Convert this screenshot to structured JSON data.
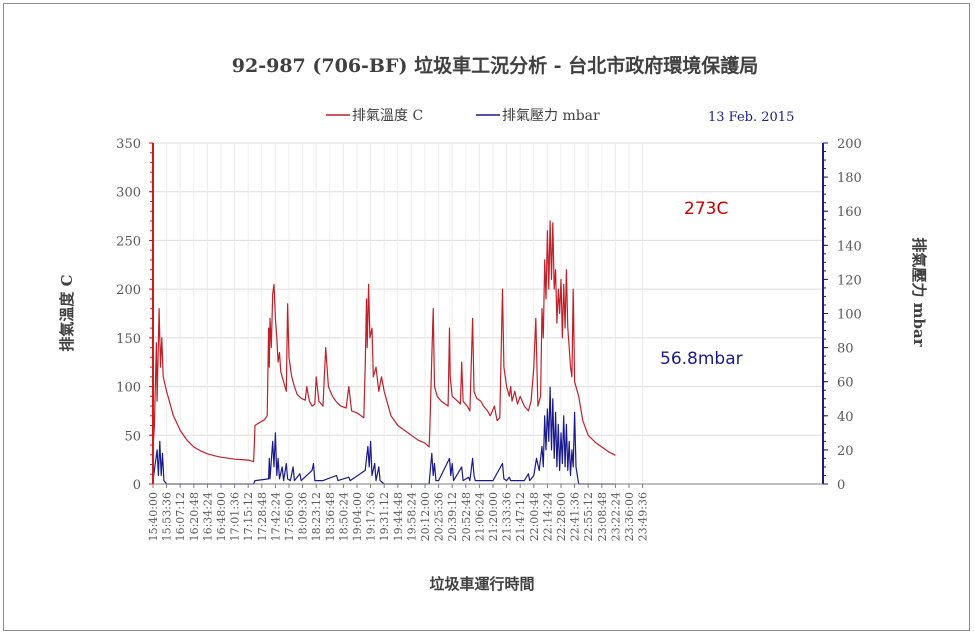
{
  "chart_data": {
    "type": "line",
    "title": "92-987 (706-BF) 垃圾車工況分析 - 台北市政府環境保護局",
    "date": "13 Feb. 2015",
    "xlabel": "垃圾車運行時間",
    "ylabel_left": "排氣溫度 C",
    "ylabel_right": "排氣壓力 mbar",
    "ylim_left": [
      0,
      350
    ],
    "ylim_right": [
      0,
      200
    ],
    "yticks_left": [
      0,
      50,
      100,
      150,
      200,
      250,
      300,
      350
    ],
    "yticks_right": [
      0,
      20,
      40,
      60,
      80,
      100,
      120,
      140,
      160,
      180,
      200
    ],
    "grid": true,
    "legend_position": "top-center",
    "x_ticks": [
      "15:40:00",
      "15:53:36",
      "16:07:12",
      "16:20:48",
      "16:34:24",
      "16:48:00",
      "17:01:36",
      "17:15:12",
      "17:28:48",
      "17:42:24",
      "17:56:00",
      "18:09:36",
      "18:23:12",
      "18:36:48",
      "18:50:24",
      "19:04:00",
      "19:17:36",
      "19:31:12",
      "19:44:48",
      "19:58:24",
      "20:12:00",
      "20:25:36",
      "20:39:12",
      "20:52:48",
      "21:06:24",
      "21:20:00",
      "21:33:36",
      "21:47:12",
      "22:00:48",
      "22:14:24",
      "22:28:00",
      "22:41:36",
      "22:55:12",
      "23:08:48",
      "23:22:24",
      "23:36:00",
      "23:49:36"
    ],
    "annotations": [
      {
        "text": "273C",
        "color": "#cc0000"
      },
      {
        "text": "56.8mbar",
        "color": "#1a1a8c"
      }
    ],
    "series": [
      {
        "name": "排氣溫度 C",
        "axis": "left",
        "color": "#c0202a",
        "points": [
          [
            0,
            35
          ],
          [
            0.1,
            60
          ],
          [
            0.25,
            145
          ],
          [
            0.3,
            85
          ],
          [
            0.45,
            180
          ],
          [
            0.55,
            120
          ],
          [
            0.65,
            150
          ],
          [
            0.75,
            110
          ],
          [
            1,
            95
          ],
          [
            1.5,
            70
          ],
          [
            2,
            55
          ],
          [
            2.5,
            45
          ],
          [
            3,
            38
          ],
          [
            3.5,
            34
          ],
          [
            4,
            31
          ],
          [
            4.5,
            29
          ],
          [
            5,
            27.5
          ],
          [
            5.5,
            26.5
          ],
          [
            6,
            25.5
          ],
          [
            6.5,
            25
          ],
          [
            7,
            24.5
          ],
          [
            7.4,
            23
          ],
          [
            7.45,
            40
          ],
          [
            7.5,
            60
          ],
          [
            7.7,
            62
          ],
          [
            8.2,
            66
          ],
          [
            8.4,
            70
          ],
          [
            8.5,
            160
          ],
          [
            8.55,
            120
          ],
          [
            8.6,
            170
          ],
          [
            8.7,
            140
          ],
          [
            8.8,
            195
          ],
          [
            8.9,
            205
          ],
          [
            9,
            170
          ],
          [
            9.1,
            150
          ],
          [
            9.2,
            125
          ],
          [
            9.3,
            135
          ],
          [
            9.4,
            115
          ],
          [
            9.6,
            105
          ],
          [
            9.8,
            95
          ],
          [
            9.9,
            185
          ],
          [
            10,
            130
          ],
          [
            10.2,
            110
          ],
          [
            10.4,
            100
          ],
          [
            10.6,
            92
          ],
          [
            10.9,
            88
          ],
          [
            11.2,
            86
          ],
          [
            11.3,
            100
          ],
          [
            11.5,
            85
          ],
          [
            11.7,
            80
          ],
          [
            11.9,
            82
          ],
          [
            12,
            110
          ],
          [
            12.2,
            85
          ],
          [
            12.5,
            80
          ],
          [
            12.7,
            140
          ],
          [
            12.9,
            100
          ],
          [
            13.2,
            90
          ],
          [
            13.5,
            84
          ],
          [
            13.8,
            80
          ],
          [
            14.2,
            78
          ],
          [
            14.4,
            100
          ],
          [
            14.6,
            75
          ],
          [
            15,
            73
          ],
          [
            15.3,
            70
          ],
          [
            15.5,
            68
          ],
          [
            15.6,
            120
          ],
          [
            15.7,
            190
          ],
          [
            15.75,
            140
          ],
          [
            15.85,
            205
          ],
          [
            15.95,
            150
          ],
          [
            16.1,
            160
          ],
          [
            16.2,
            110
          ],
          [
            16.4,
            120
          ],
          [
            16.6,
            95
          ],
          [
            16.8,
            110
          ],
          [
            17,
            95
          ],
          [
            17.2,
            85
          ],
          [
            17.5,
            70
          ],
          [
            18,
            60
          ],
          [
            18.5,
            55
          ],
          [
            19,
            50
          ],
          [
            19.5,
            45
          ],
          [
            20,
            42
          ],
          [
            20.3,
            38
          ],
          [
            20.35,
            55
          ],
          [
            20.5,
            130
          ],
          [
            20.6,
            180
          ],
          [
            20.7,
            100
          ],
          [
            20.9,
            90
          ],
          [
            21.2,
            85
          ],
          [
            21.5,
            82
          ],
          [
            21.7,
            80
          ],
          [
            21.8,
            160
          ],
          [
            21.85,
            110
          ],
          [
            22,
            90
          ],
          [
            22.4,
            85
          ],
          [
            22.6,
            82
          ],
          [
            22.7,
            125
          ],
          [
            22.8,
            85
          ],
          [
            23.1,
            80
          ],
          [
            23.3,
            75
          ],
          [
            23.5,
            170
          ],
          [
            23.6,
            95
          ],
          [
            23.8,
            88
          ],
          [
            24.1,
            85
          ],
          [
            24.3,
            80
          ],
          [
            24.6,
            75
          ],
          [
            24.8,
            70
          ],
          [
            25.1,
            80
          ],
          [
            25.3,
            65
          ],
          [
            25.5,
            68
          ],
          [
            25.7,
            200
          ],
          [
            25.8,
            120
          ],
          [
            26,
            100
          ],
          [
            26.2,
            90
          ],
          [
            26.3,
            100
          ],
          [
            26.4,
            85
          ],
          [
            26.6,
            95
          ],
          [
            26.8,
            82
          ],
          [
            27,
            90
          ],
          [
            27.3,
            80
          ],
          [
            27.6,
            75
          ],
          [
            27.8,
            85
          ],
          [
            28,
            120
          ],
          [
            28.15,
            170
          ],
          [
            28.3,
            80
          ],
          [
            28.5,
            90
          ],
          [
            28.6,
            180
          ],
          [
            28.7,
            150
          ],
          [
            28.8,
            230
          ],
          [
            28.9,
            190
          ],
          [
            29,
            260
          ],
          [
            29.1,
            200
          ],
          [
            29.2,
            270
          ],
          [
            29.3,
            210
          ],
          [
            29.4,
            268
          ],
          [
            29.5,
            200
          ],
          [
            29.6,
            220
          ],
          [
            29.7,
            165
          ],
          [
            29.8,
            200
          ],
          [
            29.9,
            175
          ],
          [
            30,
            210
          ],
          [
            30.1,
            150
          ],
          [
            30.2,
            205
          ],
          [
            30.3,
            160
          ],
          [
            30.4,
            220
          ],
          [
            30.5,
            160
          ],
          [
            30.6,
            140
          ],
          [
            30.7,
            120
          ],
          [
            30.8,
            110
          ],
          [
            30.9,
            200
          ],
          [
            31,
            105
          ],
          [
            31.3,
            90
          ],
          [
            31.6,
            65
          ],
          [
            32,
            50
          ],
          [
            32.5,
            43
          ],
          [
            33,
            38
          ],
          [
            33.5,
            33
          ],
          [
            34,
            29.5
          ]
        ]
      },
      {
        "name": "排氣壓力 mbar",
        "axis": "right",
        "color": "#1a1a8c",
        "points": [
          [
            0,
            2
          ],
          [
            0.3,
            20
          ],
          [
            0.4,
            5
          ],
          [
            0.5,
            25
          ],
          [
            0.6,
            5
          ],
          [
            0.7,
            18
          ],
          [
            0.8,
            2
          ],
          [
            1.0,
            0
          ],
          [
            7.4,
            0
          ],
          [
            7.5,
            2
          ],
          [
            8.5,
            3
          ],
          [
            8.55,
            15
          ],
          [
            8.6,
            3
          ],
          [
            8.8,
            25
          ],
          [
            8.9,
            10
          ],
          [
            9,
            30
          ],
          [
            9.1,
            5
          ],
          [
            9.2,
            15
          ],
          [
            9.3,
            3
          ],
          [
            9.5,
            10
          ],
          [
            9.6,
            2
          ],
          [
            9.8,
            12
          ],
          [
            9.9,
            3
          ],
          [
            10.1,
            2
          ],
          [
            10.3,
            10
          ],
          [
            10.4,
            2
          ],
          [
            10.8,
            6
          ],
          [
            10.9,
            2
          ],
          [
            11.7,
            8
          ],
          [
            11.8,
            12
          ],
          [
            11.9,
            2
          ],
          [
            12.5,
            2
          ],
          [
            13.5,
            5
          ],
          [
            13.6,
            2
          ],
          [
            14.4,
            4
          ],
          [
            14.5,
            2
          ],
          [
            15.6,
            8
          ],
          [
            15.7,
            15
          ],
          [
            15.8,
            22
          ],
          [
            15.9,
            10
          ],
          [
            16,
            25
          ],
          [
            16.1,
            5
          ],
          [
            16.3,
            12
          ],
          [
            16.4,
            2
          ],
          [
            16.6,
            10
          ],
          [
            16.7,
            2
          ],
          [
            17,
            0
          ],
          [
            20.3,
            0
          ],
          [
            20.35,
            5
          ],
          [
            20.5,
            18
          ],
          [
            20.6,
            5
          ],
          [
            20.7,
            12
          ],
          [
            20.8,
            2
          ],
          [
            21,
            2
          ],
          [
            21.8,
            15
          ],
          [
            21.9,
            5
          ],
          [
            22,
            12
          ],
          [
            22.1,
            2
          ],
          [
            22.7,
            10
          ],
          [
            22.8,
            2
          ],
          [
            23.2,
            4
          ],
          [
            23.3,
            2
          ],
          [
            23.5,
            15
          ],
          [
            23.6,
            5
          ],
          [
            23.7,
            2
          ],
          [
            25,
            2
          ],
          [
            25.7,
            12
          ],
          [
            25.8,
            3
          ],
          [
            26,
            2
          ],
          [
            26.2,
            4
          ],
          [
            26.3,
            2
          ],
          [
            27.3,
            2
          ],
          [
            27.6,
            6
          ],
          [
            27.7,
            2
          ],
          [
            28,
            5
          ],
          [
            28.2,
            15
          ],
          [
            28.4,
            8
          ],
          [
            28.6,
            22
          ],
          [
            28.7,
            10
          ],
          [
            28.8,
            40
          ],
          [
            28.9,
            20
          ],
          [
            29,
            44
          ],
          [
            29.1,
            25
          ],
          [
            29.2,
            56.8
          ],
          [
            29.3,
            20
          ],
          [
            29.4,
            50
          ],
          [
            29.5,
            15
          ],
          [
            29.6,
            42
          ],
          [
            29.7,
            10
          ],
          [
            29.8,
            35
          ],
          [
            29.9,
            8
          ],
          [
            30,
            30
          ],
          [
            30.1,
            12
          ],
          [
            30.2,
            40
          ],
          [
            30.3,
            10
          ],
          [
            30.4,
            35
          ],
          [
            30.5,
            8
          ],
          [
            30.6,
            25
          ],
          [
            30.7,
            5
          ],
          [
            30.8,
            20
          ],
          [
            30.9,
            10
          ],
          [
            31,
            42
          ],
          [
            31.1,
            10
          ],
          [
            31.2,
            5
          ],
          [
            31.3,
            0
          ],
          [
            34,
            0
          ]
        ]
      }
    ]
  }
}
